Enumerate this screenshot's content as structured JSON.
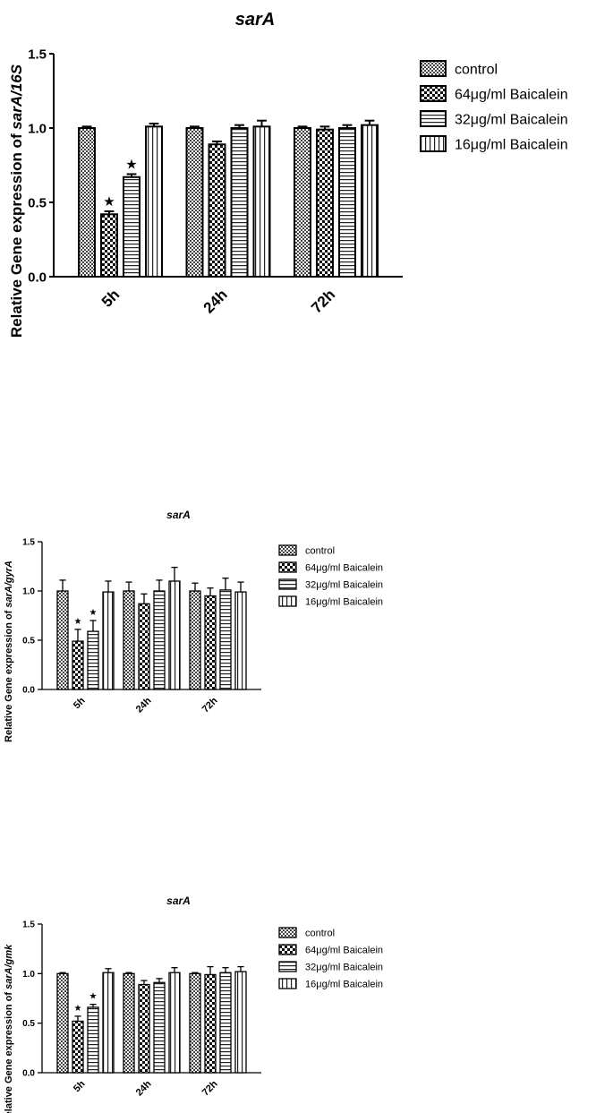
{
  "chart_data": [
    {
      "type": "bar",
      "title": "sarA",
      "ylabel_prefix": "Relative Gene expression of ",
      "ylabel_ratio": "sarA/16S",
      "categories": [
        "5h",
        "24h",
        "72h"
      ],
      "ylim": [
        0,
        1.5
      ],
      "yticks": [
        "0.0",
        "0.5",
        "1.0",
        "1.5"
      ],
      "grid": false,
      "legend_position": "right",
      "series": [
        {
          "name": "control",
          "pattern": "dots",
          "values": [
            1.0,
            1.0,
            1.0
          ],
          "errors": [
            0.01,
            0.01,
            0.01
          ]
        },
        {
          "name": "64μg/ml Baicalein",
          "pattern": "checker",
          "values": [
            0.42,
            0.89,
            0.99
          ],
          "errors": [
            0.02,
            0.02,
            0.02
          ]
        },
        {
          "name": "32μg/ml Baicalein",
          "pattern": "hlines",
          "values": [
            0.67,
            1.0,
            1.0
          ],
          "errors": [
            0.02,
            0.02,
            0.02
          ]
        },
        {
          "name": "16μg/ml Baicalein",
          "pattern": "vlines",
          "values": [
            1.01,
            1.01,
            1.02
          ],
          "errors": [
            0.02,
            0.04,
            0.03
          ]
        }
      ],
      "significance": [
        {
          "series": 1,
          "category": 0,
          "symbol": "★"
        },
        {
          "series": 2,
          "category": 0,
          "symbol": "★"
        }
      ]
    },
    {
      "type": "bar",
      "title": "sarA",
      "ylabel_prefix": "Relative Gene expression of ",
      "ylabel_ratio": "sarA/gyrA",
      "categories": [
        "5h",
        "24h",
        "72h"
      ],
      "ylim": [
        0,
        1.5
      ],
      "yticks": [
        "0.0",
        "0.5",
        "1.0",
        "1.5"
      ],
      "grid": false,
      "legend_position": "right",
      "series": [
        {
          "name": "control",
          "pattern": "dots",
          "values": [
            1.0,
            1.0,
            1.0
          ],
          "errors": [
            0.11,
            0.09,
            0.08
          ]
        },
        {
          "name": "64μg/ml Baicalein",
          "pattern": "checker",
          "values": [
            0.49,
            0.87,
            0.95
          ],
          "errors": [
            0.12,
            0.1,
            0.08
          ]
        },
        {
          "name": "32μg/ml Baicalein",
          "pattern": "hlines",
          "values": [
            0.59,
            1.0,
            1.01
          ],
          "errors": [
            0.11,
            0.11,
            0.12
          ]
        },
        {
          "name": "16μg/ml Baicalein",
          "pattern": "vlines",
          "values": [
            0.99,
            1.1,
            0.99
          ],
          "errors": [
            0.11,
            0.14,
            0.1
          ]
        }
      ],
      "significance": [
        {
          "series": 1,
          "category": 0,
          "symbol": "★"
        },
        {
          "series": 2,
          "category": 0,
          "symbol": "★"
        }
      ]
    },
    {
      "type": "bar",
      "title": "sarA",
      "ylabel_prefix": "Relative Gene expression of ",
      "ylabel_ratio": "sarA/gmk",
      "categories": [
        "5h",
        "24h",
        "72h"
      ],
      "ylim": [
        0,
        1.5
      ],
      "yticks": [
        "0.0",
        "0.5",
        "1.0",
        "1.5"
      ],
      "grid": false,
      "legend_position": "right",
      "series": [
        {
          "name": "control",
          "pattern": "dots",
          "values": [
            1.0,
            1.0,
            1.0
          ],
          "errors": [
            0.01,
            0.01,
            0.01
          ]
        },
        {
          "name": "64μg/ml Baicalein",
          "pattern": "checker",
          "values": [
            0.52,
            0.89,
            0.99
          ],
          "errors": [
            0.05,
            0.04,
            0.08
          ]
        },
        {
          "name": "32μg/ml Baicalein",
          "pattern": "hlines",
          "values": [
            0.66,
            0.91,
            1.01
          ],
          "errors": [
            0.03,
            0.04,
            0.05
          ]
        },
        {
          "name": "16μg/ml Baicalein",
          "pattern": "vlines",
          "values": [
            1.01,
            1.01,
            1.02
          ],
          "errors": [
            0.04,
            0.05,
            0.05
          ]
        }
      ],
      "significance": [
        {
          "series": 1,
          "category": 0,
          "symbol": "★"
        },
        {
          "series": 2,
          "category": 0,
          "symbol": "★"
        }
      ]
    }
  ]
}
